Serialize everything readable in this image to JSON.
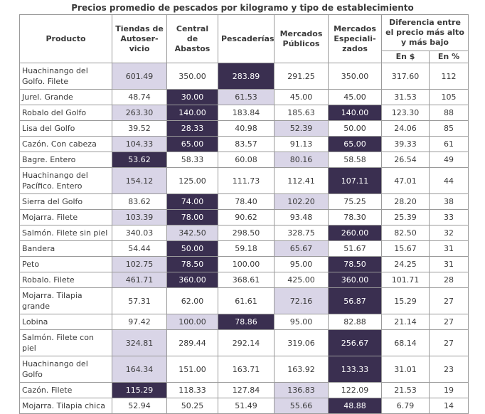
{
  "title": "Precios promedio de pescados por kilogramo y tipo de establecimiento",
  "headers": {
    "product": "Producto",
    "tiendas": "Tiendas de Autoser-vicio",
    "central": "Central de Abastos",
    "pescaderias": "Pescaderías",
    "mercados_publicos": "Mercados Públicos",
    "mercados_esp": "Mercados Especiali-zados",
    "diferencia": "Diferencia entre el precio más alto y más bajo",
    "en_pesos": "En $",
    "en_pct": "En %"
  },
  "highlight_colors": {
    "highest": "#3a2f50",
    "lowest": "#d9d5e7"
  },
  "rows": [
    {
      "product": "Huachinango del Golfo. Filete",
      "tiendas": "601.49",
      "central": "350.00",
      "pescaderias": "283.89",
      "mercados_publicos": "291.25",
      "mercados_esp": "350.00",
      "dif_pesos": "317.60",
      "dif_pct": "112"
    },
    {
      "product": "Jurel. Grande",
      "tiendas": "48.74",
      "central": "30.00",
      "pescaderias": "61.53",
      "mercados_publicos": "45.00",
      "mercados_esp": "45.00",
      "dif_pesos": "31.53",
      "dif_pct": "105"
    },
    {
      "product": "Robalo del Golfo",
      "tiendas": "263.30",
      "central": "140.00",
      "pescaderias": "183.84",
      "mercados_publicos": "185.63",
      "mercados_esp": "140.00",
      "dif_pesos": "123.30",
      "dif_pct": "88"
    },
    {
      "product": "Lisa del Golfo",
      "tiendas": "39.52",
      "central": "28.33",
      "pescaderias": "40.98",
      "mercados_publicos": "52.39",
      "mercados_esp": "50.00",
      "dif_pesos": "24.06",
      "dif_pct": "85"
    },
    {
      "product": "Cazón. Con cabeza",
      "tiendas": "104.33",
      "central": "65.00",
      "pescaderias": "83.57",
      "mercados_publicos": "91.13",
      "mercados_esp": "65.00",
      "dif_pesos": "39.33",
      "dif_pct": "61"
    },
    {
      "product": "Bagre. Entero",
      "tiendas": "53.62",
      "central": "58.33",
      "pescaderias": "60.08",
      "mercados_publicos": "80.16",
      "mercados_esp": "58.58",
      "dif_pesos": "26.54",
      "dif_pct": "49"
    },
    {
      "product": "Huachinango del Pacífico. Entero",
      "tiendas": "154.12",
      "central": "125.00",
      "pescaderias": "111.73",
      "mercados_publicos": "112.41",
      "mercados_esp": "107.11",
      "dif_pesos": "47.01",
      "dif_pct": "44"
    },
    {
      "product": "Sierra del Golfo",
      "tiendas": "83.62",
      "central": "74.00",
      "pescaderias": "78.40",
      "mercados_publicos": "102.20",
      "mercados_esp": "75.25",
      "dif_pesos": "28.20",
      "dif_pct": "38"
    },
    {
      "product": "Mojarra. Filete",
      "tiendas": "103.39",
      "central": "78.00",
      "pescaderias": "90.62",
      "mercados_publicos": "93.48",
      "mercados_esp": "78.30",
      "dif_pesos": "25.39",
      "dif_pct": "33"
    },
    {
      "product": "Salmón. Filete sin piel",
      "tiendas": "340.03",
      "central": "342.50",
      "pescaderias": "298.50",
      "mercados_publicos": "328.75",
      "mercados_esp": "260.00",
      "dif_pesos": "82.50",
      "dif_pct": "32"
    },
    {
      "product": "Bandera",
      "tiendas": "54.44",
      "central": "50.00",
      "pescaderias": "59.18",
      "mercados_publicos": "65.67",
      "mercados_esp": "51.67",
      "dif_pesos": "15.67",
      "dif_pct": "31"
    },
    {
      "product": "Peto",
      "tiendas": "102.75",
      "central": "78.50",
      "pescaderias": "100.00",
      "mercados_publicos": "95.00",
      "mercados_esp": "78.50",
      "dif_pesos": "24.25",
      "dif_pct": "31"
    },
    {
      "product": "Robalo. Filete",
      "tiendas": "461.71",
      "central": "360.00",
      "pescaderias": "368.61",
      "mercados_publicos": "425.00",
      "mercados_esp": "360.00",
      "dif_pesos": "101.71",
      "dif_pct": "28"
    },
    {
      "product": "Mojarra. Tilapia grande",
      "tiendas": "57.31",
      "central": "62.00",
      "pescaderias": "61.61",
      "mercados_publicos": "72.16",
      "mercados_esp": "56.87",
      "dif_pesos": "15.29",
      "dif_pct": "27"
    },
    {
      "product": "Lobina",
      "tiendas": "97.42",
      "central": "100.00",
      "pescaderias": "78.86",
      "mercados_publicos": "95.00",
      "mercados_esp": "82.88",
      "dif_pesos": "21.14",
      "dif_pct": "27"
    },
    {
      "product": "Salmón. Filete con piel",
      "tiendas": "324.81",
      "central": "289.44",
      "pescaderias": "292.14",
      "mercados_publicos": "319.06",
      "mercados_esp": "256.67",
      "dif_pesos": "68.14",
      "dif_pct": "27"
    },
    {
      "product": "Huachinango del Golfo",
      "tiendas": "164.34",
      "central": "151.00",
      "pescaderias": "163.71",
      "mercados_publicos": "163.92",
      "mercados_esp": "133.33",
      "dif_pesos": "31.01",
      "dif_pct": "23"
    },
    {
      "product": "Cazón. Filete",
      "tiendas": "115.29",
      "central": "118.33",
      "pescaderias": "127.84",
      "mercados_publicos": "136.83",
      "mercados_esp": "122.09",
      "dif_pesos": "21.53",
      "dif_pct": "19"
    },
    {
      "product": "Mojarra. Tilapia chica",
      "tiendas": "52.94",
      "central": "50.25",
      "pescaderias": "51.49",
      "mercados_publicos": "55.66",
      "mercados_esp": "48.88",
      "dif_pesos": "6.79",
      "dif_pct": "14"
    }
  ]
}
